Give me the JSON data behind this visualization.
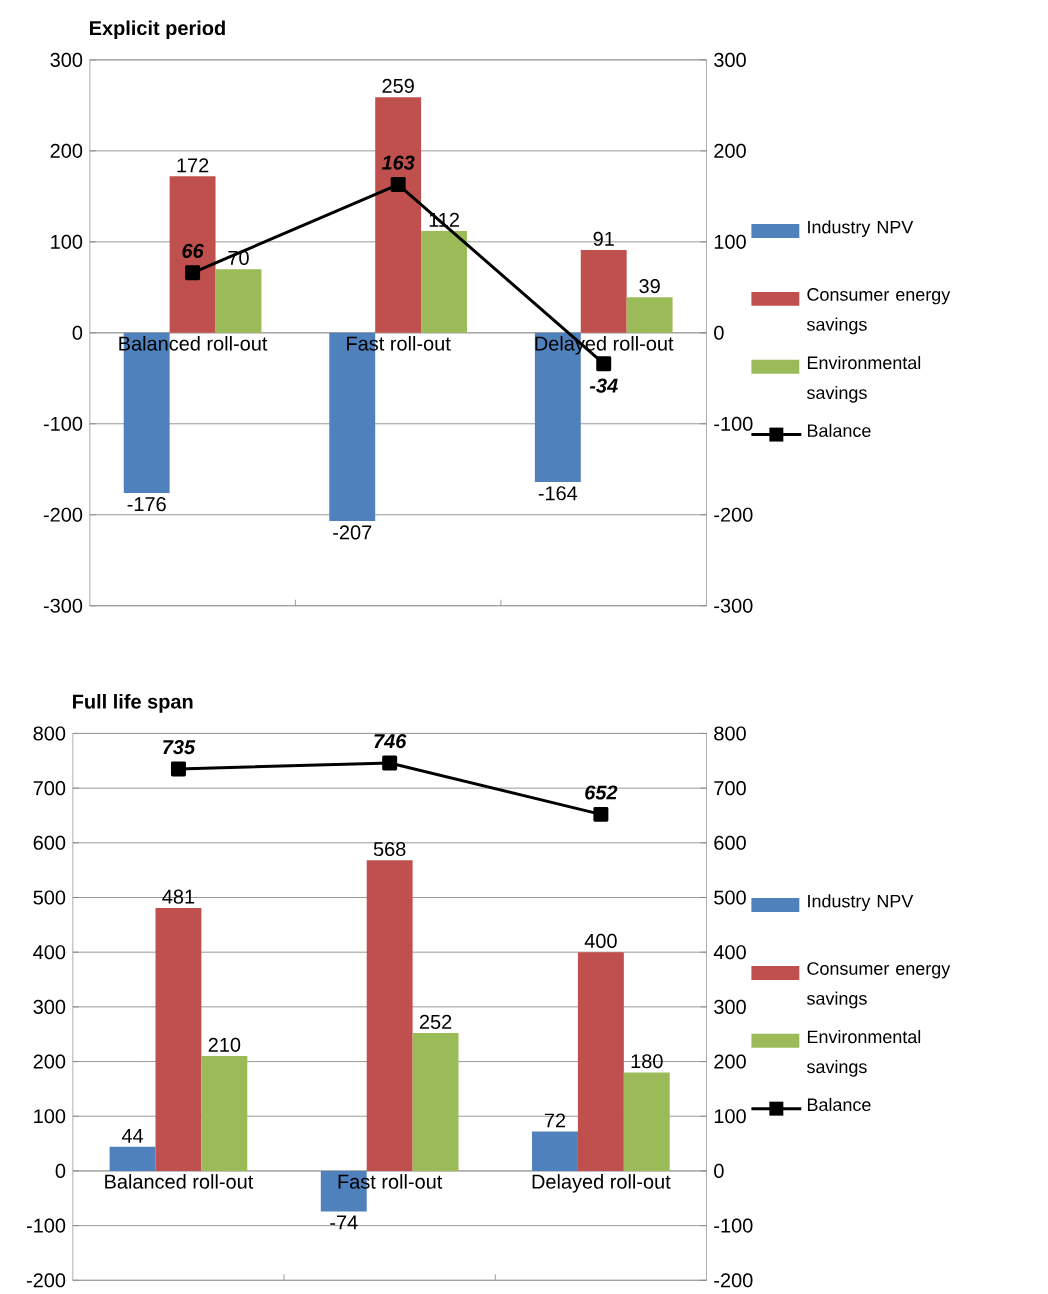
{
  "chart_data": [
    {
      "type": "bar",
      "title": "Explicit period",
      "categories": [
        "Balanced roll-out",
        "Fast roll-out",
        "Delayed roll-out"
      ],
      "series": [
        {
          "name": "Industry NPV",
          "color": "#4f81bd",
          "values": [
            -176,
            -207,
            -164
          ]
        },
        {
          "name": "Consumer energy savings",
          "color": "#c0504d",
          "values": [
            172,
            259,
            91
          ]
        },
        {
          "name": "Environmental savings",
          "color": "#9bbb59",
          "values": [
            70,
            112,
            39
          ]
        },
        {
          "name": "Balance",
          "type": "line",
          "axis": "y2",
          "color": "#000000",
          "marker": "square",
          "values": [
            66,
            163,
            -34
          ]
        }
      ],
      "ylim": [
        -300,
        300
      ],
      "yticks": [
        -300,
        -200,
        -100,
        0,
        100,
        200,
        300
      ],
      "y2lim": [
        -300,
        300
      ],
      "y2ticks": [
        -300,
        -200,
        -100,
        0,
        100,
        200,
        300
      ],
      "grid": "y",
      "legend": "right",
      "data_labels": true
    },
    {
      "type": "bar",
      "title": "Full life span",
      "categories": [
        "Balanced roll-out",
        "Fast roll-out",
        "Delayed roll-out"
      ],
      "series": [
        {
          "name": "Industry NPV",
          "color": "#4f81bd",
          "values": [
            44,
            -74,
            72
          ]
        },
        {
          "name": "Consumer energy savings",
          "color": "#c0504d",
          "values": [
            481,
            568,
            400
          ]
        },
        {
          "name": "Environmental savings",
          "color": "#9bbb59",
          "values": [
            210,
            252,
            180
          ]
        },
        {
          "name": "Balance",
          "type": "line",
          "axis": "y2",
          "color": "#000000",
          "marker": "square",
          "values": [
            735,
            746,
            652
          ]
        }
      ],
      "ylim": [
        -200,
        800
      ],
      "yticks": [
        -200,
        -100,
        0,
        100,
        200,
        300,
        400,
        500,
        600,
        700,
        800
      ],
      "y2lim": [
        -200,
        800
      ],
      "y2ticks": [
        -200,
        -100,
        0,
        100,
        200,
        300,
        400,
        500,
        600,
        700,
        800
      ],
      "grid": "y",
      "legend": "right",
      "data_labels": true
    }
  ]
}
